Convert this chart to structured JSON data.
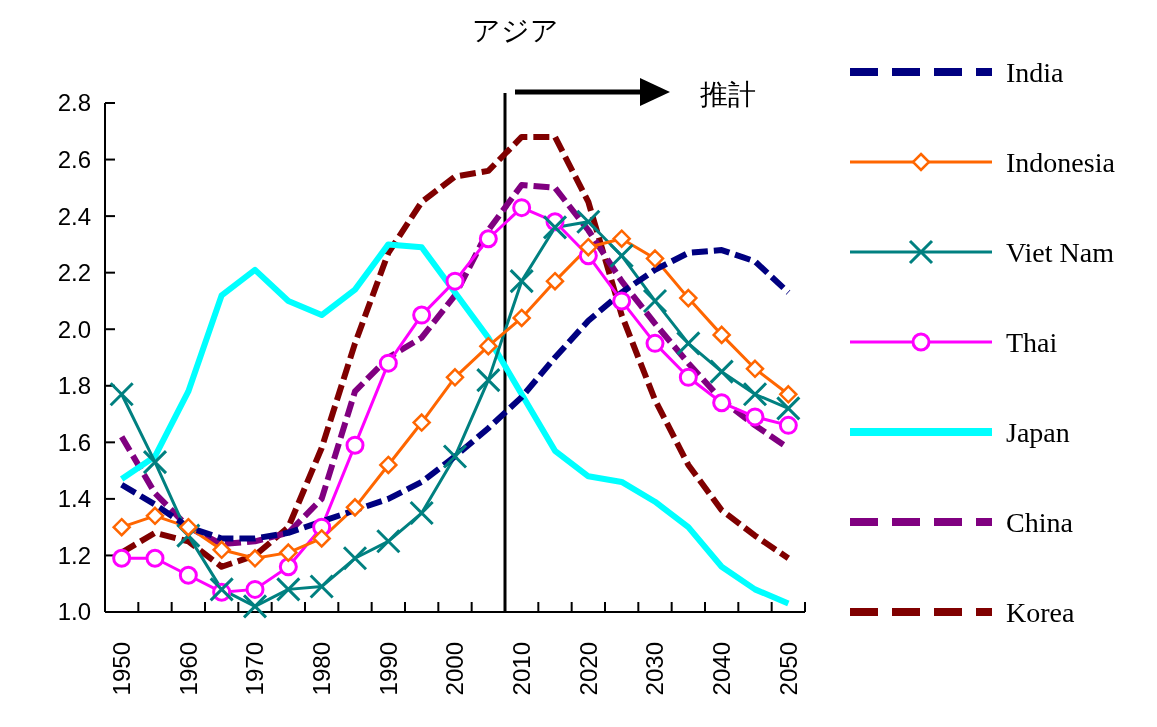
{
  "chart_data": {
    "type": "line",
    "title": "アジア",
    "annotations": [
      "推計"
    ],
    "x": [
      1950,
      1955,
      1960,
      1965,
      1970,
      1975,
      1980,
      1985,
      1990,
      1995,
      2000,
      2005,
      2010,
      2015,
      2020,
      2025,
      2030,
      2035,
      2040,
      2045,
      2050
    ],
    "xlim": [
      1947.5,
      2052.5
    ],
    "xticks": [
      {
        "value": 1947.5,
        "label": null
      },
      {
        "value": 1952.5,
        "label": null
      },
      {
        "value": 1957.5,
        "label": null
      },
      {
        "value": 1962.5,
        "label": null
      },
      {
        "value": 1967.5,
        "label": null
      },
      {
        "value": 1972.5,
        "label": null
      },
      {
        "value": 1977.5,
        "label": null
      },
      {
        "value": 1982.5,
        "label": null
      },
      {
        "value": 1987.5,
        "label": null
      },
      {
        "value": 1992.5,
        "label": null
      },
      {
        "value": 1997.5,
        "label": null
      },
      {
        "value": 2002.5,
        "label": null
      },
      {
        "value": 2007.5,
        "label": null
      },
      {
        "value": 2012.5,
        "label": null
      },
      {
        "value": 2017.5,
        "label": null
      },
      {
        "value": 2022.5,
        "label": null
      },
      {
        "value": 2027.5,
        "label": null
      },
      {
        "value": 2032.5,
        "label": null
      },
      {
        "value": 2037.5,
        "label": null
      },
      {
        "value": 2042.5,
        "label": null
      },
      {
        "value": 2047.5,
        "label": null
      },
      {
        "value": 2052.5,
        "label": null
      },
      1950,
      1960,
      1970,
      1980,
      1990,
      2000,
      2010,
      2020,
      2030,
      2040,
      2050
    ],
    "ylim": [
      1.0,
      2.8
    ],
    "yticks": [
      {
        "value": 1.0,
        "label": "1.0"
      },
      1.2,
      1.4,
      1.6,
      1.8,
      {
        "value": 2.0,
        "label": "2.0"
      },
      2.2,
      2.4,
      2.6,
      2.8
    ],
    "ref_lines": [
      {
        "axis": "x",
        "value": 2007.5,
        "label": null,
        "color": "#000000"
      }
    ],
    "legend": "right",
    "grid": false,
    "series": [
      {
        "name": "India",
        "color": "#000080",
        "line_style": "dashed",
        "marker": "none",
        "values": [
          1.45,
          1.38,
          1.3,
          1.26,
          1.26,
          1.28,
          1.32,
          1.36,
          1.4,
          1.46,
          1.55,
          1.65,
          1.76,
          1.9,
          2.03,
          2.13,
          2.21,
          2.27,
          2.28,
          2.24,
          2.13
        ]
      },
      {
        "name": "Indonesia",
        "color": "#ff6600",
        "line_style": "solid",
        "marker": "diamond",
        "values": [
          1.3,
          1.34,
          1.3,
          1.22,
          1.19,
          1.21,
          1.26,
          1.37,
          1.52,
          1.67,
          1.83,
          1.94,
          2.04,
          2.17,
          2.29,
          2.32,
          2.25,
          2.11,
          1.98,
          1.86,
          1.77
        ]
      },
      {
        "name": "Viet Nam",
        "color": "#008080",
        "line_style": "solid",
        "marker": "cross",
        "values": [
          1.77,
          1.53,
          1.27,
          1.08,
          1.02,
          1.08,
          1.09,
          1.19,
          1.25,
          1.35,
          1.55,
          1.82,
          2.17,
          2.36,
          2.38,
          2.26,
          2.1,
          1.95,
          1.85,
          1.77,
          1.72
        ]
      },
      {
        "name": "Thai",
        "color": "#ff00ff",
        "line_style": "solid",
        "marker": "circle",
        "values": [
          1.19,
          1.19,
          1.13,
          1.07,
          1.08,
          1.16,
          1.3,
          1.59,
          1.88,
          2.05,
          2.17,
          2.32,
          2.43,
          2.38,
          2.26,
          2.1,
          1.95,
          1.83,
          1.74,
          1.69,
          1.66
        ]
      },
      {
        "name": "Japan",
        "color": "#00ffff",
        "line_style": "solid",
        "marker": "none",
        "values": [
          1.47,
          1.55,
          1.78,
          2.12,
          2.21,
          2.1,
          2.05,
          2.14,
          2.3,
          2.29,
          2.13,
          1.97,
          1.77,
          1.57,
          1.48,
          1.46,
          1.39,
          1.3,
          1.16,
          1.08,
          1.03
        ]
      },
      {
        "name": "China",
        "color": "#800080",
        "line_style": "dashed",
        "marker": "none",
        "values": [
          1.62,
          1.42,
          1.3,
          1.24,
          1.25,
          1.28,
          1.4,
          1.78,
          1.9,
          1.97,
          2.12,
          2.35,
          2.51,
          2.5,
          2.35,
          2.17,
          2.02,
          1.88,
          1.75,
          1.66,
          1.58
        ]
      },
      {
        "name": "Korea",
        "color": "#800000",
        "line_style": "dashed",
        "marker": "none",
        "values": [
          1.21,
          1.28,
          1.25,
          1.16,
          1.2,
          1.3,
          1.58,
          1.95,
          2.27,
          2.45,
          2.54,
          2.56,
          2.68,
          2.68,
          2.45,
          2.05,
          1.75,
          1.52,
          1.36,
          1.27,
          1.19
        ]
      }
    ]
  }
}
